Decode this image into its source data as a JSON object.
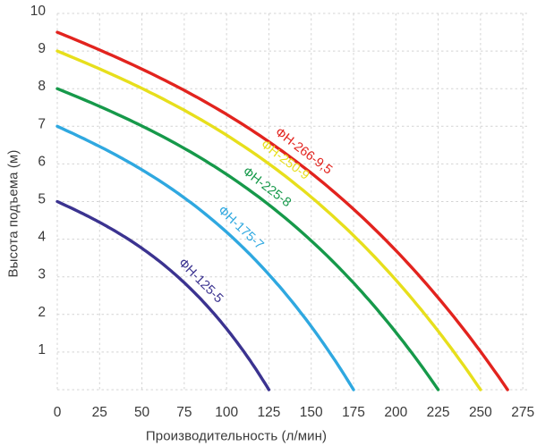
{
  "chart_data": {
    "type": "line",
    "title": "",
    "xlabel": "Производительность (л/мин)",
    "ylabel": "Высота подъема (м)",
    "xlim": [
      0,
      275
    ],
    "ylim": [
      0,
      10
    ],
    "x_ticks": [
      0,
      25,
      50,
      75,
      100,
      125,
      150,
      175,
      200,
      225,
      250,
      275
    ],
    "y_ticks": [
      1,
      2,
      3,
      4,
      5,
      6,
      7,
      8,
      9,
      10
    ],
    "grid": "dashed",
    "grid_color": "#d4d4d4",
    "text_color": "#3a3a3a",
    "legend_position": "labels-along-curves",
    "series": [
      {
        "name": "ФН-266-9,5",
        "color": "#e2231e",
        "max_head_m": 9.5,
        "max_flow_l_min": 266,
        "label_at_fraction": 0.53,
        "points": [
          [
            0,
            9.5
          ],
          [
            25,
            9.0
          ],
          [
            50,
            8.5
          ],
          [
            75,
            8.0
          ],
          [
            100,
            7.3
          ],
          [
            125,
            6.6
          ],
          [
            150,
            5.8
          ],
          [
            175,
            4.8
          ],
          [
            200,
            3.7
          ],
          [
            225,
            2.4
          ],
          [
            250,
            1.0
          ],
          [
            266,
            0
          ]
        ]
      },
      {
        "name": "ФН-250-9",
        "color": "#e7df1c",
        "max_head_m": 9,
        "max_flow_l_min": 250,
        "label_at_fraction": 0.52,
        "points": [
          [
            0,
            9.0
          ],
          [
            25,
            8.5
          ],
          [
            50,
            8.0
          ],
          [
            75,
            7.4
          ],
          [
            100,
            6.8
          ],
          [
            125,
            6.0
          ],
          [
            150,
            5.1
          ],
          [
            175,
            4.1
          ],
          [
            200,
            2.9
          ],
          [
            225,
            1.6
          ],
          [
            250,
            0
          ]
        ]
      },
      {
        "name": "ФН-225-8",
        "color": "#16994a",
        "max_head_m": 8,
        "max_flow_l_min": 225,
        "label_at_fraction": 0.53,
        "points": [
          [
            0,
            8.0
          ],
          [
            25,
            7.5
          ],
          [
            50,
            7.0
          ],
          [
            75,
            6.4
          ],
          [
            100,
            5.7
          ],
          [
            125,
            4.9
          ],
          [
            150,
            4.0
          ],
          [
            175,
            2.8
          ],
          [
            200,
            1.5
          ],
          [
            225,
            0
          ]
        ]
      },
      {
        "name": "ФН-175-7",
        "color": "#2fa8e0",
        "max_head_m": 7,
        "max_flow_l_min": 175,
        "label_at_fraction": 0.59,
        "points": [
          [
            0,
            7.0
          ],
          [
            25,
            6.5
          ],
          [
            50,
            5.8
          ],
          [
            75,
            5.1
          ],
          [
            100,
            4.2
          ],
          [
            125,
            3.1
          ],
          [
            150,
            1.7
          ],
          [
            175,
            0
          ]
        ]
      },
      {
        "name": "ФН-125-5",
        "color": "#3b3390",
        "max_head_m": 5,
        "max_flow_l_min": 125,
        "label_at_fraction": 0.635,
        "points": [
          [
            0,
            5.0
          ],
          [
            25,
            4.4
          ],
          [
            50,
            3.8
          ],
          [
            75,
            2.8
          ],
          [
            100,
            1.6
          ],
          [
            125,
            0
          ]
        ]
      }
    ],
    "curve_shape": {
      "a": 0.511,
      "b": 0.132,
      "c": 0.357
    }
  }
}
